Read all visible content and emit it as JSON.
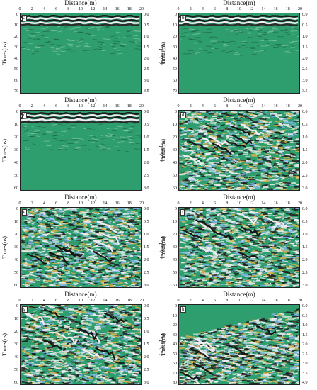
{
  "axes": {
    "x_title": "Distance(m)",
    "y_left_title": "Times(ns)",
    "y_right_title": "Depth(m)",
    "x_ticks": [
      "0",
      "2",
      "4",
      "6",
      "8",
      "10",
      "12",
      "14",
      "16",
      "18",
      "20"
    ]
  },
  "panels": [
    {
      "tag": "a",
      "time_ticks": [
        "0",
        "10",
        "20",
        "30",
        "40",
        "50",
        "60",
        "70"
      ],
      "depth_ticks": [
        "0.0",
        "0.5",
        "1.0",
        "1.5",
        "2.0",
        "2.5",
        "3.0",
        "3.5"
      ],
      "style": "raw"
    },
    {
      "tag": "b",
      "time_ticks": [
        "0",
        "10",
        "20",
        "30",
        "40",
        "50",
        "60",
        "70"
      ],
      "depth_ticks": [
        "0.0",
        "0.5",
        "1.0",
        "1.5",
        "2.0",
        "2.5",
        "3.0",
        "3.5"
      ],
      "style": "raw"
    },
    {
      "tag": "c",
      "time_ticks": [
        "0",
        "10",
        "20",
        "30",
        "40",
        "50",
        "60"
      ],
      "depth_ticks": [
        "0.0",
        "0.5",
        "1.0",
        "1.5",
        "2.0",
        "2.5",
        "3.0"
      ],
      "style": "raw"
    },
    {
      "tag": "d",
      "time_ticks": [
        "0",
        "10",
        "20",
        "30",
        "40",
        "50",
        "60"
      ],
      "depth_ticks": [
        "0.0",
        "0.5",
        "1.0",
        "1.5",
        "2.0",
        "2.5",
        "3.0"
      ],
      "style": "gain"
    },
    {
      "tag": "e",
      "time_ticks": [
        "0",
        "10",
        "20",
        "30",
        "40",
        "50",
        "60"
      ],
      "depth_ticks": [
        "0.0",
        "0.5",
        "1.0",
        "1.5",
        "2.0",
        "2.5",
        "3.0"
      ],
      "style": "gain"
    },
    {
      "tag": "f",
      "time_ticks": [
        "0",
        "10",
        "20",
        "30",
        "40",
        "50",
        "60"
      ],
      "depth_ticks": [
        "0.0",
        "0.5",
        "1.0",
        "1.5",
        "2.0",
        "2.5",
        "3.0"
      ],
      "style": "gain"
    },
    {
      "tag": "g",
      "time_ticks": [
        "0",
        "10",
        "20",
        "30",
        "40",
        "50",
        "60"
      ],
      "depth_ticks": [
        "0.0",
        "0.5",
        "1.0",
        "1.5",
        "2.0",
        "2.5",
        "3.0"
      ],
      "style": "gain"
    },
    {
      "tag": "h",
      "time_ticks": [
        "0",
        "10",
        "20",
        "30",
        "40",
        "50",
        "60",
        "70",
        "80"
      ],
      "depth_ticks": [
        "0.0",
        "0.5",
        "1.0",
        "1.5",
        "2.0",
        "2.5",
        "3.0",
        "3.5",
        "4.0"
      ],
      "style": "topo"
    }
  ],
  "colors": {
    "background": "#2f9e6e",
    "dark": "#1a1a1a",
    "light": "#f4eef4",
    "accent": "#7fb2ea"
  }
}
